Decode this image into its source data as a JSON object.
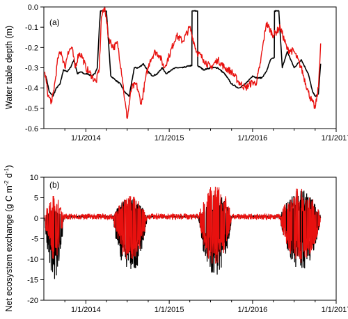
{
  "colors": {
    "series_black": "#000000",
    "series_red": "#e8110f"
  },
  "chart_data": [
    {
      "type": "line",
      "panel_label": "(a)",
      "ylabel": "Water table depth (m)",
      "ylim": [
        -0.6,
        0.0
      ],
      "yticks": [
        0.0,
        -0.1,
        -0.2,
        -0.3,
        -0.4,
        -0.5,
        -0.6
      ],
      "ytick_labels": [
        "0.0",
        "-0.1",
        "-0.2",
        "-0.3",
        "-0.4",
        "-0.5",
        "-0.6"
      ],
      "xlim": [
        "2013-07-01",
        "2017-01-01"
      ],
      "xticks": [
        "2014-01-01",
        "2015-01-01",
        "2016-01-01",
        "2017-01-01"
      ],
      "xtick_labels": [
        "1/1/2014",
        "1/1/2015",
        "1/1/2016",
        "1/1/2017"
      ],
      "grid": false,
      "series": [
        {
          "color": "black",
          "x": [
            "2013-07-10",
            "2013-07-25",
            "2013-08-10",
            "2013-08-25",
            "2013-09-10",
            "2013-09-25",
            "2013-10-10",
            "2013-10-25",
            "2013-11-10",
            "2013-11-25",
            "2013-12-10",
            "2013-12-25",
            "2014-01-10",
            "2014-01-25",
            "2014-02-10",
            "2014-02-20",
            "2014-03-01",
            "2014-03-06",
            "2014-03-20",
            "2014-04-01",
            "2014-04-20",
            "2014-05-10",
            "2014-06-01",
            "2014-06-20",
            "2014-07-10",
            "2014-08-01",
            "2014-08-20",
            "2014-09-10",
            "2014-10-01",
            "2014-10-20",
            "2014-11-10",
            "2014-12-01",
            "2014-12-20",
            "2015-01-10",
            "2015-02-01",
            "2015-03-01",
            "2015-04-01",
            "2015-04-10",
            "2015-04-11",
            "2015-05-05",
            "2015-05-06",
            "2015-06-01",
            "2015-07-01",
            "2015-08-01",
            "2015-09-01",
            "2015-10-01",
            "2015-11-01",
            "2015-12-01",
            "2016-01-01",
            "2016-01-20",
            "2016-02-10",
            "2016-03-01",
            "2016-03-20",
            "2016-04-05",
            "2016-04-06",
            "2016-04-25",
            "2016-05-10",
            "2016-06-01",
            "2016-07-01",
            "2016-08-01",
            "2016-09-01",
            "2016-09-20",
            "2016-10-01",
            "2016-10-15",
            "2016-10-25"
          ],
          "y": [
            -0.34,
            -0.42,
            -0.44,
            -0.4,
            -0.38,
            -0.31,
            -0.32,
            -0.3,
            -0.26,
            -0.33,
            -0.32,
            -0.33,
            -0.33,
            -0.34,
            -0.33,
            -0.3,
            -0.1,
            -0.02,
            -0.02,
            -0.02,
            -0.34,
            -0.36,
            -0.38,
            -0.42,
            -0.44,
            -0.3,
            -0.3,
            -0.28,
            -0.32,
            -0.34,
            -0.33,
            -0.3,
            -0.33,
            -0.31,
            -0.3,
            -0.3,
            -0.29,
            -0.29,
            -0.02,
            -0.02,
            -0.29,
            -0.31,
            -0.3,
            -0.3,
            -0.33,
            -0.38,
            -0.4,
            -0.38,
            -0.34,
            -0.35,
            -0.35,
            -0.32,
            -0.26,
            -0.25,
            -0.02,
            -0.02,
            -0.3,
            -0.22,
            -0.3,
            -0.26,
            -0.33,
            -0.42,
            -0.44,
            -0.43,
            -0.28
          ]
        },
        {
          "color": "red",
          "x": [
            "2013-07-05",
            "2013-07-20",
            "2013-08-05",
            "2013-08-20",
            "2013-09-01",
            "2013-09-15",
            "2013-10-01",
            "2013-10-15",
            "2013-11-01",
            "2013-11-15",
            "2013-12-01",
            "2013-12-15",
            "2014-01-01",
            "2014-01-15",
            "2014-02-01",
            "2014-02-15",
            "2014-03-01",
            "2014-03-10",
            "2014-03-25",
            "2014-04-10",
            "2014-05-01",
            "2014-05-20",
            "2014-06-10",
            "2014-06-20",
            "2014-07-01",
            "2014-07-20",
            "2014-08-10",
            "2014-09-01",
            "2014-09-20",
            "2014-10-10",
            "2014-11-01",
            "2014-11-20",
            "2014-12-10",
            "2015-01-01",
            "2015-02-01",
            "2015-03-01",
            "2015-04-01",
            "2015-05-01",
            "2015-06-01",
            "2015-07-01",
            "2015-08-01",
            "2015-09-01",
            "2015-10-01",
            "2015-11-01",
            "2015-12-01",
            "2016-01-01",
            "2016-01-15",
            "2016-02-01",
            "2016-03-01",
            "2016-04-01",
            "2016-05-01",
            "2016-06-01",
            "2016-07-01",
            "2016-08-01",
            "2016-09-01",
            "2016-09-15",
            "2016-10-01",
            "2016-10-15",
            "2016-10-25"
          ],
          "y": [
            -0.32,
            -0.44,
            -0.47,
            -0.36,
            -0.25,
            -0.22,
            -0.3,
            -0.22,
            -0.2,
            -0.3,
            -0.23,
            -0.24,
            -0.3,
            -0.32,
            -0.35,
            -0.37,
            -0.3,
            -0.05,
            0.0,
            -0.15,
            -0.2,
            -0.18,
            -0.35,
            -0.46,
            -0.55,
            -0.4,
            -0.38,
            -0.48,
            -0.35,
            -0.26,
            -0.22,
            -0.24,
            -0.3,
            -0.24,
            -0.14,
            -0.17,
            -0.1,
            -0.22,
            -0.26,
            -0.3,
            -0.26,
            -0.3,
            -0.32,
            -0.37,
            -0.4,
            -0.37,
            -0.38,
            -0.3,
            -0.08,
            -0.14,
            -0.1,
            -0.21,
            -0.22,
            -0.3,
            -0.42,
            -0.46,
            -0.5,
            -0.4,
            -0.18
          ]
        }
      ]
    },
    {
      "type": "line",
      "panel_label": "(b)",
      "ylabel": "Net ecosystem exchange (g C m-2 d-1)",
      "ylabel_main": "Net ecosystem exchange (g C m",
      "ylabel_sup1": "-2",
      "ylabel_mid": " d",
      "ylabel_sup2": "-1",
      "ylabel_end": ")",
      "ylim": [
        -20,
        10
      ],
      "yticks": [
        10,
        5,
        0,
        -5,
        -10,
        -15,
        -20
      ],
      "ytick_labels": [
        "10",
        "5",
        "0",
        "-5",
        "-10",
        "-15",
        "-20"
      ],
      "xlim": [
        "2013-07-01",
        "2017-01-01"
      ],
      "xticks": [
        "2014-01-01",
        "2015-01-01",
        "2016-01-01",
        "2017-01-01"
      ],
      "xtick_labels": [
        "1/1/2014",
        "1/1/2015",
        "1/1/2016",
        "1/1/2017"
      ],
      "grid": false,
      "seasons": [
        {
          "start": "2013-07-05",
          "end": "2013-09-25",
          "black_min": -15.0,
          "black_max": 2.5,
          "red_min": -10.0,
          "red_max": 5.5
        },
        {
          "start": "2014-05-01",
          "end": "2014-09-25",
          "black_min": -14.0,
          "black_max": 5.0,
          "red_min": -11.0,
          "red_max": 5.5
        },
        {
          "start": "2015-05-10",
          "end": "2015-09-30",
          "black_min": -14.5,
          "black_max": 6.0,
          "red_min": -11.5,
          "red_max": 8.5
        },
        {
          "start": "2016-05-01",
          "end": "2016-10-25",
          "black_min": -13.0,
          "black_max": 7.0,
          "red_min": -11.0,
          "red_max": 7.5
        }
      ],
      "series": [
        {
          "color": "black"
        },
        {
          "color": "red"
        }
      ]
    }
  ]
}
